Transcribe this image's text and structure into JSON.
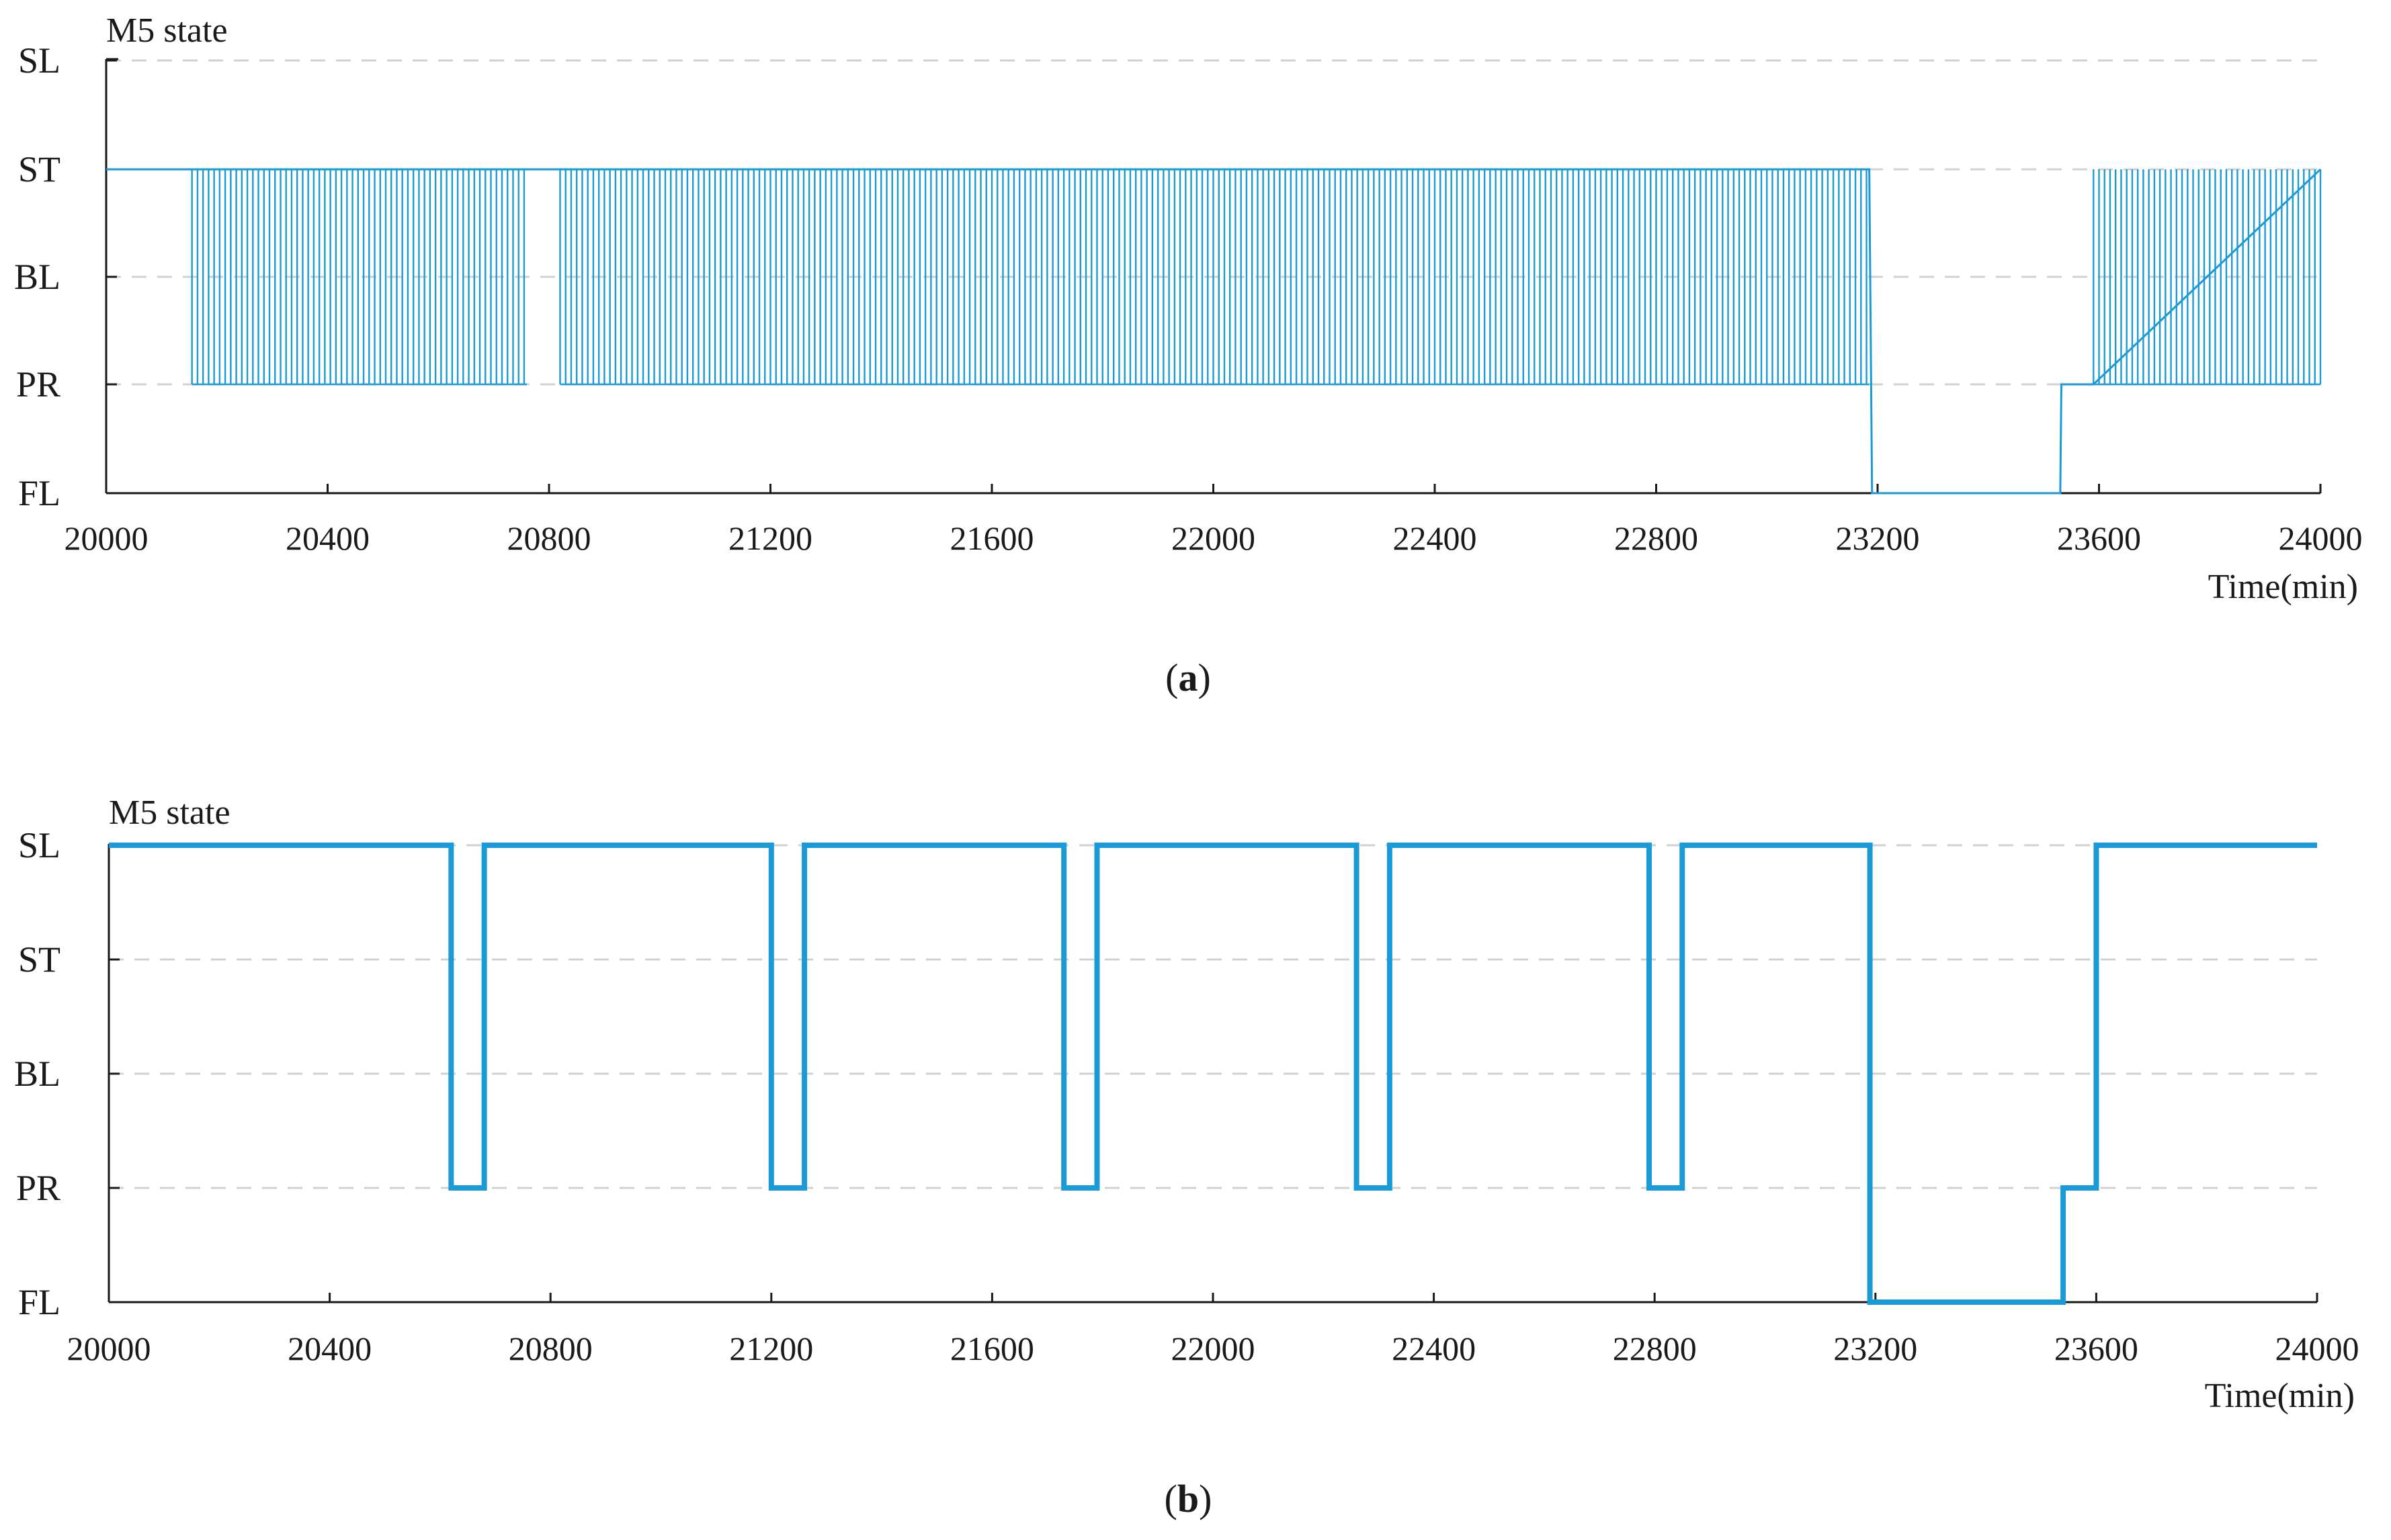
{
  "chart_data": [
    {
      "id": "a",
      "type": "line",
      "step": true,
      "caption_letter": "a",
      "title": "M5 state",
      "xlabel": "Time(min)",
      "states": [
        "SL",
        "ST",
        "BL",
        "PR",
        "FL"
      ],
      "xlim": [
        20000,
        24000
      ],
      "xticks": [
        20000,
        20400,
        20800,
        21200,
        21600,
        22000,
        22400,
        22800,
        23200,
        23600,
        24000
      ],
      "grid": true,
      "color": "#1a9ad6",
      "oscillation": {
        "high": "ST",
        "low": "PR",
        "period_min": 10,
        "segments": [
          [
            20155,
            20760
          ],
          [
            20820,
            23185
          ],
          [
            23590,
            24000
          ]
        ]
      },
      "points": [
        {
          "x": 20000,
          "y": "ST"
        },
        {
          "x": 20155,
          "y": "ST"
        },
        {
          "x": 20760,
          "y": "ST"
        },
        {
          "x": 20820,
          "y": "ST"
        },
        {
          "x": 23185,
          "y": "ST"
        },
        {
          "x": 23190,
          "y": "FL"
        },
        {
          "x": 23530,
          "y": "FL"
        },
        {
          "x": 23532,
          "y": "PR"
        },
        {
          "x": 23590,
          "y": "PR"
        },
        {
          "x": 24000,
          "y": "ST"
        }
      ]
    },
    {
      "id": "b",
      "type": "line",
      "step": true,
      "caption_letter": "b",
      "title": "M5 state",
      "xlabel": "Time(min)",
      "states": [
        "SL",
        "ST",
        "BL",
        "PR",
        "FL"
      ],
      "xlim": [
        20000,
        24000
      ],
      "xticks": [
        20000,
        20400,
        20800,
        21200,
        21600,
        22000,
        22400,
        22800,
        23200,
        23600,
        24000
      ],
      "grid": true,
      "color": "#1a9ad6",
      "points": [
        {
          "x": 20000,
          "y": "SL"
        },
        {
          "x": 20620,
          "y": "SL"
        },
        {
          "x": 20620,
          "y": "PR"
        },
        {
          "x": 20680,
          "y": "PR"
        },
        {
          "x": 20680,
          "y": "SL"
        },
        {
          "x": 21200,
          "y": "SL"
        },
        {
          "x": 21200,
          "y": "PR"
        },
        {
          "x": 21260,
          "y": "PR"
        },
        {
          "x": 21260,
          "y": "SL"
        },
        {
          "x": 21730,
          "y": "SL"
        },
        {
          "x": 21730,
          "y": "PR"
        },
        {
          "x": 21790,
          "y": "PR"
        },
        {
          "x": 21790,
          "y": "SL"
        },
        {
          "x": 22260,
          "y": "SL"
        },
        {
          "x": 22260,
          "y": "PR"
        },
        {
          "x": 22320,
          "y": "PR"
        },
        {
          "x": 22320,
          "y": "SL"
        },
        {
          "x": 22790,
          "y": "SL"
        },
        {
          "x": 22790,
          "y": "PR"
        },
        {
          "x": 22850,
          "y": "PR"
        },
        {
          "x": 22850,
          "y": "SL"
        },
        {
          "x": 23190,
          "y": "SL"
        },
        {
          "x": 23190,
          "y": "FL"
        },
        {
          "x": 23540,
          "y": "FL"
        },
        {
          "x": 23540,
          "y": "PR"
        },
        {
          "x": 23600,
          "y": "PR"
        },
        {
          "x": 23600,
          "y": "SL"
        },
        {
          "x": 24000,
          "y": "SL"
        }
      ]
    }
  ]
}
